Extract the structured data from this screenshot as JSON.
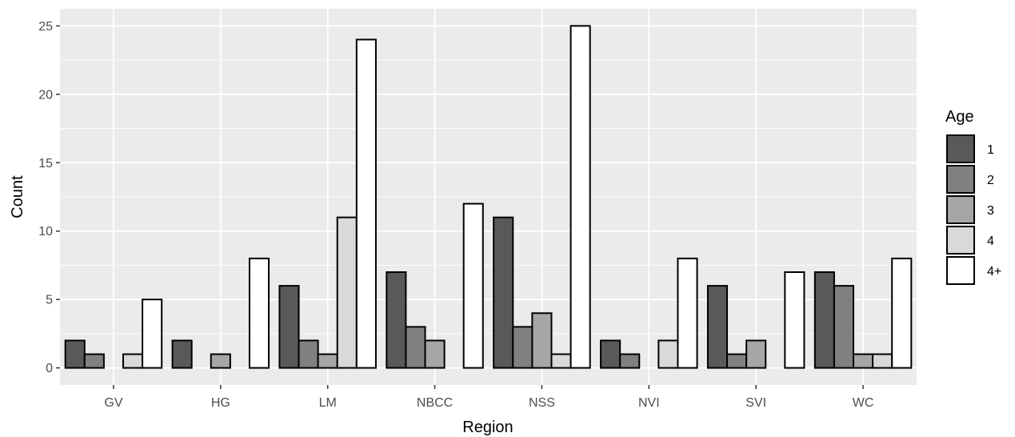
{
  "chart_data": {
    "type": "bar",
    "title": "",
    "xlabel": "Region",
    "ylabel": "Count",
    "ylim": [
      -1.25,
      26.25
    ],
    "yticks": [
      0,
      5,
      10,
      15,
      20,
      25
    ],
    "grid": true,
    "legend_position": "right",
    "legend_title": "Age",
    "categories": [
      "GV",
      "HG",
      "LM",
      "NBCC",
      "NSS",
      "NVI",
      "SVI",
      "WC"
    ],
    "series": [
      {
        "name": "1",
        "color": "#595959",
        "values": [
          2,
          2,
          6,
          7,
          11,
          2,
          6,
          7
        ]
      },
      {
        "name": "2",
        "color": "#808080",
        "values": [
          1,
          0,
          2,
          3,
          3,
          1,
          1,
          6
        ]
      },
      {
        "name": "3",
        "color": "#a6a6a6",
        "values": [
          0,
          1,
          1,
          2,
          4,
          0,
          2,
          1
        ]
      },
      {
        "name": "4",
        "color": "#d9d9d9",
        "values": [
          1,
          0,
          11,
          0,
          1,
          2,
          0,
          1
        ]
      },
      {
        "name": "4+",
        "color": "#ffffff",
        "values": [
          5,
          8,
          24,
          12,
          25,
          8,
          7,
          8
        ]
      }
    ]
  }
}
